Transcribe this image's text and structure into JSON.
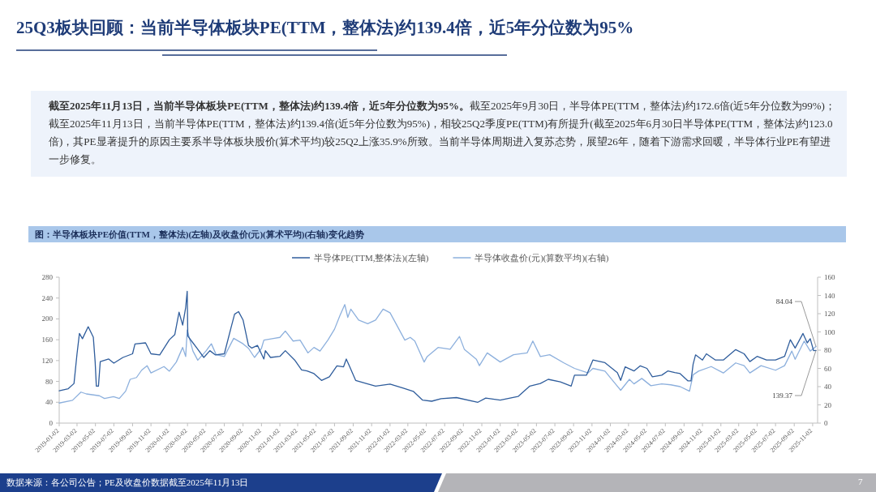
{
  "chart_data": {
    "type": "line",
    "title": "25Q3板块回顾：当前半导体板块PE(TTM，整体法)约139.4倍，近5年分位数为95%",
    "subtitle": "图：半导体板块PE价值(TTM，整体法)(左轴)及收盘价(元)(算术平均)(右轴)变化趋势",
    "annotations": [
      "**截至2025年11月13日，当前半导体板块PE(TTM，整体法)约139.4倍，近5年分位数为95%。**截至2025年9月30日，半导体PE(TTM，整体法)约172.6倍(近5年分位数为99%)；截至2025年11月13日，当前半导体PE(TTM，整体法)约139.4倍(近5年分位数为95%)，相较25Q2季度PE(TTM)有所提升(截至2025年6月30日半导体PE(TTM，整体法)约123.0倍)，其PE显著提升的原因主要系半导体板块股价(算术平均)较25Q2上涨35.9%所致。当前半导体周期进入复苏态势，展望26年，随着下游需求回暖，半导体行业PE有望进一步修复。",
      "数据来源：各公司公告；PE及收盘价数据截至2025年11月13日",
      "7",
      {
        "text": "84.04",
        "x": "2025-11-13",
        "y": 147.07
      },
      {
        "text": "139.37",
        "x": "2025-11-13",
        "y": 139.37
      }
    ],
    "legend": "top",
    "xlim": [
      "2019-01-02",
      "2025-11-13"
    ],
    "xticks": [
      "2019-01-02",
      "2019-03-02",
      "2019-05-02",
      "2019-07-02",
      "2019-09-02",
      "2019-11-02",
      "2020-01-02",
      "2020-03-02",
      "2020-05-02",
      "2020-07-02",
      "2020-09-02",
      "2020-11-02",
      "2021-01-02",
      "2021-03-02",
      "2021-05-02",
      "2021-07-02",
      "2021-09-02",
      "2021-11-02",
      "2022-01-02",
      "2022-03-02",
      "2022-05-02",
      "2022-07-02",
      "2022-09-02",
      "2022-11-02",
      "2023-01-02",
      "2023-03-02",
      "2023-05-02",
      "2023-07-02",
      "2023-09-02",
      "2023-11-02",
      "2024-01-02",
      "2024-03-02",
      "2024-05-02",
      "2024-07-02",
      "2024-09-02",
      "2024-11-02",
      "2025-01-02",
      "2025-03-02",
      "2025-05-02",
      "2025-07-02",
      "2025-09-02",
      "2025-11-02"
    ],
    "ylim": [
      0,
      280
    ],
    "yticks": [
      0,
      40,
      80,
      120,
      160,
      200,
      240,
      280
    ],
    "y2lim": [
      0,
      160
    ],
    "y2ticks": [
      0,
      20,
      40,
      60,
      80,
      100,
      120,
      140,
      160
    ],
    "series": [
      {
        "name": "半导体PE(TTM,整体法)(左轴)",
        "color": "#2f5d9c",
        "x": [
          "2019-01-02",
          "2019-02-01",
          "2019-02-20",
          "2019-03-02",
          "2019-03-10",
          "2019-03-20",
          "2019-04-08",
          "2019-04-25",
          "2019-05-01",
          "2019-05-05",
          "2019-05-12",
          "2019-05-18",
          "2019-06-15",
          "2019-07-02",
          "2019-08-01",
          "2019-09-02",
          "2019-09-10",
          "2019-10-15",
          "2019-11-02",
          "2019-12-01",
          "2020-01-02",
          "2020-01-20",
          "2020-02-03",
          "2020-02-15",
          "2020-02-25",
          "2020-03-01",
          "2020-03-03",
          "2020-03-20",
          "2020-04-02",
          "2020-04-25",
          "2020-05-15",
          "2020-06-02",
          "2020-07-02",
          "2020-07-25",
          "2020-08-05",
          "2020-08-18",
          "2020-09-02",
          "2020-09-20",
          "2020-10-01",
          "2020-10-20",
          "2020-11-10",
          "2020-11-15",
          "2020-12-02",
          "2021-01-02",
          "2021-01-20",
          "2021-02-20",
          "2021-03-15",
          "2021-04-02",
          "2021-04-25",
          "2021-05-20",
          "2021-06-15",
          "2021-07-10",
          "2021-08-01",
          "2021-08-10",
          "2021-08-20",
          "2021-09-10",
          "2021-10-15",
          "2021-11-15",
          "2022-01-02",
          "2022-02-15",
          "2022-03-20",
          "2022-04-20",
          "2022-05-20",
          "2022-06-20",
          "2022-08-10",
          "2022-10-20",
          "2022-11-15",
          "2023-01-02",
          "2023-03-02",
          "2023-04-10",
          "2023-05-15",
          "2023-06-10",
          "2023-07-20",
          "2023-08-25",
          "2023-09-05",
          "2023-10-15",
          "2023-11-05",
          "2023-12-15",
          "2024-01-25",
          "2024-02-05",
          "2024-02-20",
          "2024-03-20",
          "2024-04-10",
          "2024-05-02",
          "2024-05-20",
          "2024-06-20",
          "2024-07-10",
          "2024-08-02",
          "2024-08-20",
          "2024-09-15",
          "2024-09-25",
          "2024-10-02",
          "2024-10-10",
          "2024-11-02",
          "2024-11-15",
          "2024-12-15",
          "2025-01-10",
          "2025-02-20",
          "2025-03-20",
          "2025-04-08",
          "2025-05-02",
          "2025-06-02",
          "2025-07-02",
          "2025-08-01",
          "2025-08-20",
          "2025-09-05",
          "2025-10-01",
          "2025-10-15",
          "2025-10-25",
          "2025-11-05",
          "2025-11-13"
        ],
        "values": [
          62,
          66,
          76,
          133,
          172,
          162,
          185,
          165,
          118,
          71,
          71,
          118,
          123,
          115,
          126,
          133,
          152,
          154,
          133,
          131,
          160,
          170,
          213,
          188,
          222,
          253,
          167,
          154,
          144,
          126,
          139,
          131,
          133,
          185,
          209,
          214,
          198,
          149,
          144,
          149,
          123,
          139,
          126,
          128,
          139,
          121,
          102,
          100,
          95,
          82,
          89,
          110,
          108,
          123,
          110,
          82,
          76,
          71,
          75,
          67,
          61,
          44,
          42,
          47,
          49,
          40,
          48,
          44,
          51,
          71,
          76,
          84,
          79,
          71,
          92,
          92,
          121,
          116,
          97,
          82,
          108,
          100,
          110,
          105,
          89,
          92,
          100,
          97,
          95,
          81,
          81,
          113,
          131,
          121,
          133,
          121,
          121,
          141,
          133,
          118,
          128,
          121,
          121,
          128,
          160,
          144,
          172,
          154,
          162,
          139,
          139.37
        ]
      },
      {
        "name": "半导体收盘价(元)(算数平均)(右轴)",
        "color": "#8db0dd",
        "axis": "y2",
        "x": [
          "2019-01-02",
          "2019-02-15",
          "2019-03-15",
          "2019-04-02",
          "2019-05-15",
          "2019-06-01",
          "2019-07-01",
          "2019-07-20",
          "2019-08-10",
          "2019-08-25",
          "2019-09-15",
          "2019-10-02",
          "2019-10-20",
          "2019-11-02",
          "2019-12-15",
          "2020-01-02",
          "2020-01-25",
          "2020-02-15",
          "2020-02-25",
          "2020-03-01",
          "2020-03-20",
          "2020-04-05",
          "2020-05-02",
          "2020-05-20",
          "2020-06-05",
          "2020-07-02",
          "2020-08-02",
          "2020-09-02",
          "2020-09-20",
          "2020-10-10",
          "2020-11-02",
          "2020-11-10",
          "2020-12-15",
          "2021-01-02",
          "2021-01-20",
          "2021-02-15",
          "2021-03-10",
          "2021-04-05",
          "2021-04-25",
          "2021-05-15",
          "2021-06-10",
          "2021-07-02",
          "2021-07-20",
          "2021-08-05",
          "2021-08-15",
          "2021-08-25",
          "2021-09-20",
          "2021-10-20",
          "2021-11-15",
          "2021-12-10",
          "2022-01-02",
          "2022-01-25",
          "2022-02-20",
          "2022-03-10",
          "2022-03-25",
          "2022-04-25",
          "2022-05-05",
          "2022-06-10",
          "2022-07-20",
          "2022-08-20",
          "2022-09-05",
          "2022-10-15",
          "2022-10-25",
          "2022-11-20",
          "2023-01-02",
          "2023-02-15",
          "2023-04-01",
          "2023-04-20",
          "2023-05-15",
          "2023-06-15",
          "2023-08-01",
          "2023-09-05",
          "2023-10-20",
          "2023-11-05",
          "2023-12-15",
          "2024-02-05",
          "2024-03-05",
          "2024-03-20",
          "2024-04-15",
          "2024-05-15",
          "2024-06-20",
          "2024-07-20",
          "2024-08-20",
          "2024-09-20",
          "2024-10-02",
          "2024-10-20",
          "2024-12-01",
          "2025-01-10",
          "2025-02-20",
          "2025-03-20",
          "2025-04-08",
          "2025-05-15",
          "2025-07-02",
          "2025-08-01",
          "2025-08-25",
          "2025-09-05",
          "2025-10-05",
          "2025-10-25",
          "2025-11-13"
        ],
        "values": [
          22,
          25,
          34,
          32,
          30,
          27,
          29,
          27,
          35,
          48,
          50,
          58,
          63,
          55,
          62,
          57,
          67,
          83,
          73,
          102,
          79,
          69,
          79,
          87,
          75,
          73,
          93,
          87,
          82,
          72,
          82,
          91,
          93,
          94,
          101,
          90,
          91,
          77,
          83,
          79,
          91,
          103,
          118,
          130,
          116,
          125,
          113,
          109,
          113,
          125,
          121,
          107,
          91,
          94,
          90,
          67,
          73,
          83,
          81,
          95,
          81,
          70,
          63,
          77,
          67,
          75,
          77,
          90,
          73,
          75,
          66,
          60,
          55,
          60,
          57,
          36,
          48,
          43,
          49,
          41,
          43,
          42,
          40,
          35,
          53,
          57,
          62,
          55,
          66,
          63,
          55,
          63,
          58,
          63,
          79,
          70,
          90,
          79,
          84.04
        ]
      }
    ]
  }
}
